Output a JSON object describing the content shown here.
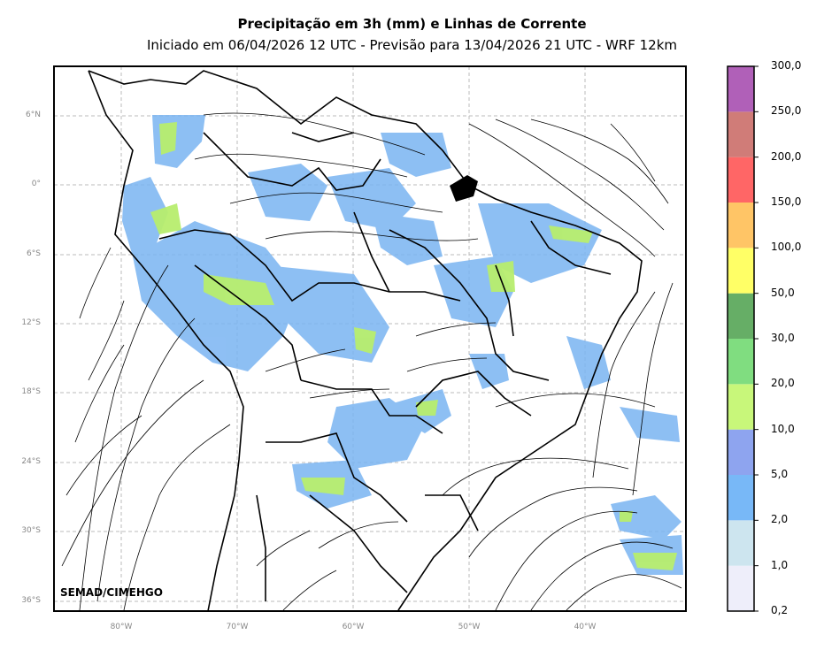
{
  "title": "Precipitação em 3h (mm) e Linhas de Corrente",
  "subtitle": "Iniciado em 06/04/2026 12 UTC - Previsão para 13/04/2026 21 UTC - WRF 12km",
  "credit": "SEMAD/CIMEHGO",
  "lat_labels": [
    "6°N",
    "0°",
    "6°S",
    "12°S",
    "18°S",
    "24°S",
    "30°S",
    "36°S"
  ],
  "lon_labels": [
    "80°W",
    "70°W",
    "60°W",
    "50°W",
    "40°W"
  ],
  "colorbar": {
    "labels": [
      "0,2",
      "1,0",
      "2,0",
      "5,0",
      "10,0",
      "20,0",
      "30,0",
      "50,0",
      "100,0",
      "150,0",
      "200,0",
      "250,0",
      "300,0"
    ],
    "colors": [
      "#eeeefa",
      "#cde5ef",
      "#78b8f7",
      "#8ea4ef",
      "#c8f77a",
      "#80dd80",
      "#66ae66",
      "#ffff66",
      "#ffc566",
      "#ff6666",
      "#d07c78",
      "#b060b8"
    ]
  }
}
